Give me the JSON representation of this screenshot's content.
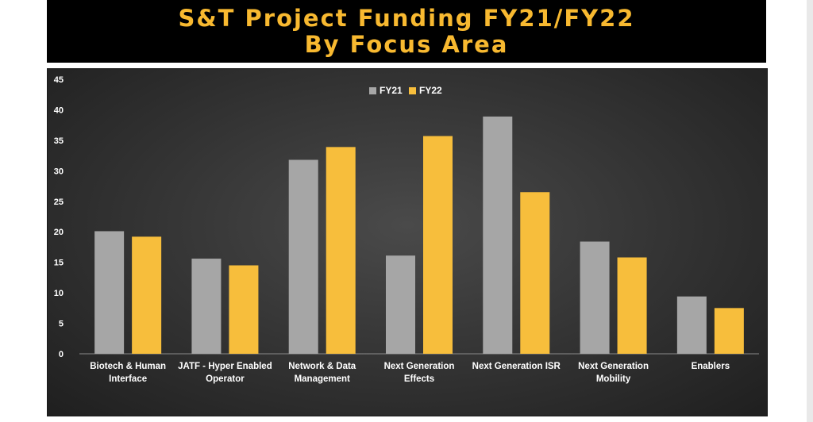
{
  "title": {
    "line1": "S&T Project Funding FY21/FY22",
    "line2": "By Focus Area"
  },
  "colors": {
    "banner_bg": "#000000",
    "title_text": "#f8b930",
    "panel_bg": "#333333",
    "fy21": "#a6a6a6",
    "fy22": "#f7be3c",
    "axis_text": "#ffffff"
  },
  "chart_data": {
    "type": "bar",
    "title": "S&T Project Funding FY21/FY22 By Focus Area",
    "xlabel": "",
    "ylabel": "",
    "ylim": [
      0,
      45
    ],
    "yticks": [
      0,
      5,
      10,
      15,
      20,
      25,
      30,
      35,
      40,
      45
    ],
    "grid": false,
    "legend_position": "top-center",
    "categories": [
      [
        "Biotech & Human",
        "Interface"
      ],
      [
        "JATF - Hyper Enabled",
        "Operator"
      ],
      [
        "Network & Data",
        "Management"
      ],
      [
        "Next Generation",
        "Effects"
      ],
      [
        "Next Generation ISR"
      ],
      [
        "Next Generation",
        "Mobility"
      ],
      [
        "Enablers"
      ]
    ],
    "series": [
      {
        "name": "FY21",
        "color": "#a6a6a6",
        "values": [
          20.1,
          15.6,
          31.8,
          16.1,
          38.9,
          18.4,
          9.4
        ]
      },
      {
        "name": "FY22",
        "color": "#f7be3c",
        "values": [
          19.2,
          14.5,
          33.9,
          35.7,
          26.5,
          15.8,
          7.5
        ]
      }
    ]
  }
}
